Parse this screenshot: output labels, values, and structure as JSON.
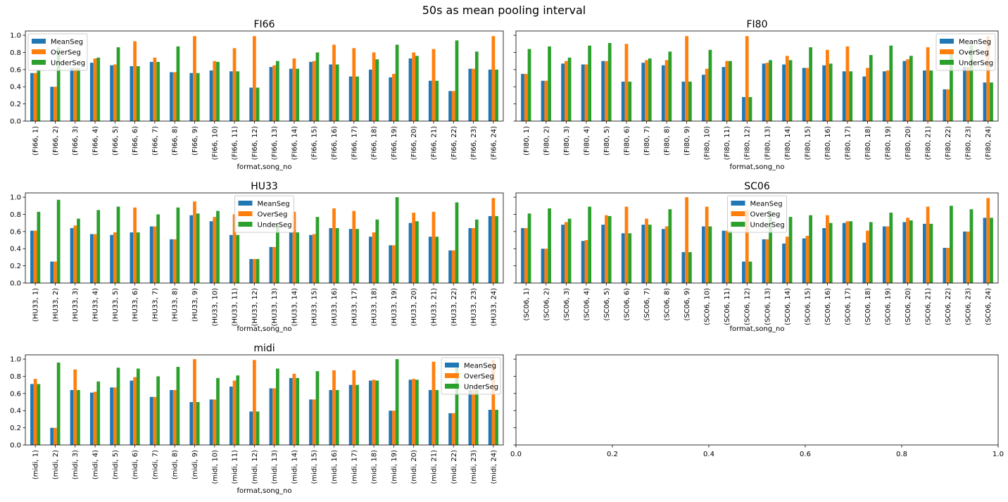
{
  "figure": {
    "title": "50s as mean pooling interval"
  },
  "colors": {
    "MeanSeg": "#1f77b4",
    "OverSeg": "#ff7f0e",
    "UnderSeg": "#2ca02c"
  },
  "chart_data": [
    {
      "type": "bar",
      "title": "FI66",
      "xlabel": "format,song_no",
      "ylim": [
        0,
        1.05
      ],
      "yticks": [
        "0.0",
        "0.2",
        "0.4",
        "0.6",
        "0.8",
        "1.0"
      ],
      "legend": "upper-left",
      "categories": [
        "(FI66, 1)",
        "(FI66, 2)",
        "(FI66, 3)",
        "(FI66, 4)",
        "(FI66, 5)",
        "(FI66, 6)",
        "(FI66, 7)",
        "(FI66, 8)",
        "(FI66, 9)",
        "(FI66, 10)",
        "(FI66, 11)",
        "(FI66, 12)",
        "(FI66, 13)",
        "(FI66, 14)",
        "(FI66, 15)",
        "(FI66, 16)",
        "(FI66, 17)",
        "(FI66, 18)",
        "(FI66, 19)",
        "(FI66, 20)",
        "(FI66, 21)",
        "(FI66, 22)",
        "(FI66, 23)",
        "(FI66, 24)"
      ],
      "series": [
        {
          "name": "MeanSeg",
          "values": [
            0.56,
            0.4,
            0.62,
            0.68,
            0.65,
            0.64,
            0.69,
            0.57,
            0.56,
            0.59,
            0.58,
            0.39,
            0.63,
            0.61,
            0.69,
            0.66,
            0.52,
            0.6,
            0.51,
            0.73,
            0.47,
            0.35,
            0.61,
            0.6
          ]
        },
        {
          "name": "OverSeg",
          "values": [
            0.56,
            0.4,
            0.62,
            0.73,
            0.66,
            0.93,
            0.74,
            0.57,
            0.99,
            0.7,
            0.85,
            0.99,
            0.65,
            0.73,
            0.7,
            0.89,
            0.85,
            0.8,
            0.55,
            0.8,
            0.84,
            0.35,
            0.61,
            0.99
          ]
        },
        {
          "name": "UnderSeg",
          "values": [
            0.6,
            0.86,
            0.62,
            0.74,
            0.86,
            0.64,
            0.69,
            0.87,
            0.56,
            0.69,
            0.58,
            0.39,
            0.7,
            0.61,
            0.8,
            0.66,
            0.52,
            0.72,
            0.89,
            0.76,
            0.47,
            0.94,
            0.81,
            0.6
          ]
        }
      ]
    },
    {
      "type": "bar",
      "title": "FI80",
      "xlabel": "format,song_no",
      "ylim": [
        0,
        1.05
      ],
      "yticks": [
        "0.0",
        "0.2",
        "0.4",
        "0.6",
        "0.8",
        "1.0"
      ],
      "legend": "upper-right",
      "categories": [
        "(FI80, 1)",
        "(FI80, 2)",
        "(FI80, 3)",
        "(FI80, 4)",
        "(FI80, 5)",
        "(FI80, 6)",
        "(FI80, 7)",
        "(FI80, 8)",
        "(FI80, 9)",
        "(FI80, 10)",
        "(FI80, 11)",
        "(FI80, 12)",
        "(FI80, 13)",
        "(FI80, 14)",
        "(FI80, 15)",
        "(FI80, 16)",
        "(FI80, 17)",
        "(FI80, 18)",
        "(FI80, 19)",
        "(FI80, 20)",
        "(FI80, 21)",
        "(FI80, 22)",
        "(FI80, 23)",
        "(FI80, 24)"
      ],
      "series": [
        {
          "name": "MeanSeg",
          "values": [
            0.55,
            0.47,
            0.67,
            0.66,
            0.7,
            0.46,
            0.68,
            0.65,
            0.46,
            0.54,
            0.63,
            0.28,
            0.67,
            0.66,
            0.62,
            0.65,
            0.58,
            0.52,
            0.58,
            0.7,
            0.59,
            0.37,
            0.63,
            0.45
          ]
        },
        {
          "name": "OverSeg",
          "values": [
            0.55,
            0.47,
            0.7,
            0.66,
            0.7,
            0.9,
            0.71,
            0.71,
            0.99,
            0.61,
            0.7,
            0.99,
            0.68,
            0.76,
            0.62,
            0.83,
            0.87,
            0.62,
            0.59,
            0.72,
            0.86,
            0.37,
            0.63,
            0.99
          ]
        },
        {
          "name": "UnderSeg",
          "values": [
            0.84,
            0.87,
            0.74,
            0.88,
            0.91,
            0.46,
            0.73,
            0.81,
            0.46,
            0.83,
            0.7,
            0.28,
            0.71,
            0.71,
            0.86,
            0.67,
            0.58,
            0.77,
            0.88,
            0.76,
            0.59,
            0.8,
            0.88,
            0.45
          ]
        }
      ]
    },
    {
      "type": "bar",
      "title": "HU33",
      "xlabel": "format,song_no",
      "ylim": [
        0,
        1.05
      ],
      "yticks": [
        "0.0",
        "0.2",
        "0.4",
        "0.6",
        "0.8",
        "1.0"
      ],
      "legend": "upper-center",
      "categories": [
        "(HU33, 1)",
        "(HU33, 2)",
        "(HU33, 3)",
        "(HU33, 4)",
        "(HU33, 5)",
        "(HU33, 6)",
        "(HU33, 7)",
        "(HU33, 8)",
        "(HU33, 9)",
        "(HU33, 10)",
        "(HU33, 11)",
        "(HU33, 12)",
        "(HU33, 13)",
        "(HU33, 14)",
        "(HU33, 15)",
        "(HU33, 16)",
        "(HU33, 17)",
        "(HU33, 18)",
        "(HU33, 19)",
        "(HU33, 20)",
        "(HU33, 21)",
        "(HU33, 22)",
        "(HU33, 23)",
        "(HU33, 24)"
      ],
      "series": [
        {
          "name": "MeanSeg",
          "values": [
            0.61,
            0.25,
            0.64,
            0.57,
            0.56,
            0.59,
            0.66,
            0.51,
            0.79,
            0.72,
            0.56,
            0.28,
            0.42,
            0.59,
            0.56,
            0.64,
            0.63,
            0.54,
            0.44,
            0.7,
            0.54,
            0.38,
            0.64,
            0.78
          ]
        },
        {
          "name": "OverSeg",
          "values": [
            0.61,
            0.25,
            0.67,
            0.57,
            0.59,
            0.88,
            0.66,
            0.51,
            0.95,
            0.77,
            0.8,
            0.28,
            0.42,
            0.83,
            0.57,
            0.87,
            0.84,
            0.59,
            0.44,
            0.82,
            0.83,
            0.38,
            0.64,
            0.99
          ]
        },
        {
          "name": "UnderSeg",
          "values": [
            0.83,
            0.97,
            0.75,
            0.85,
            0.89,
            0.59,
            0.8,
            0.88,
            0.81,
            0.84,
            0.56,
            0.28,
            0.68,
            0.59,
            0.77,
            0.64,
            0.63,
            0.74,
            1.0,
            0.72,
            0.54,
            0.94,
            0.74,
            0.78
          ]
        }
      ]
    },
    {
      "type": "bar",
      "title": "SC06",
      "xlabel": "format,song_no",
      "ylim": [
        0,
        1.05
      ],
      "yticks": [
        "0.0",
        "0.2",
        "0.4",
        "0.6",
        "0.8",
        "1.0"
      ],
      "legend": "upper-center",
      "categories": [
        "(SC06, 1)",
        "(SC06, 2)",
        "(SC06, 3)",
        "(SC06, 4)",
        "(SC06, 5)",
        "(SC06, 6)",
        "(SC06, 7)",
        "(SC06, 8)",
        "(SC06, 9)",
        "(SC06, 10)",
        "(SC06, 11)",
        "(SC06, 12)",
        "(SC06, 13)",
        "(SC06, 14)",
        "(SC06, 15)",
        "(SC06, 16)",
        "(SC06, 17)",
        "(SC06, 18)",
        "(SC06, 19)",
        "(SC06, 20)",
        "(SC06, 21)",
        "(SC06, 22)",
        "(SC06, 23)",
        "(SC06, 24)"
      ],
      "series": [
        {
          "name": "MeanSeg",
          "values": [
            0.64,
            0.4,
            0.68,
            0.49,
            0.68,
            0.58,
            0.68,
            0.63,
            0.36,
            0.66,
            0.61,
            0.25,
            0.51,
            0.46,
            0.52,
            0.64,
            0.7,
            0.47,
            0.66,
            0.71,
            0.69,
            0.41,
            0.6,
            0.76
          ]
        },
        {
          "name": "OverSeg",
          "values": [
            0.64,
            0.4,
            0.71,
            0.5,
            0.79,
            0.89,
            0.75,
            0.66,
            1.0,
            0.89,
            0.61,
            0.85,
            0.51,
            0.54,
            0.55,
            0.79,
            0.72,
            0.61,
            0.66,
            0.76,
            0.89,
            0.41,
            0.6,
            0.99
          ]
        },
        {
          "name": "UnderSeg",
          "values": [
            0.81,
            0.87,
            0.75,
            0.89,
            0.78,
            0.58,
            0.68,
            0.86,
            0.36,
            0.66,
            0.61,
            0.25,
            0.84,
            0.77,
            0.79,
            0.7,
            0.72,
            0.71,
            0.82,
            0.73,
            0.69,
            0.9,
            0.86,
            0.76
          ]
        }
      ]
    },
    {
      "type": "bar",
      "title": "midi",
      "xlabel": "format,song_no",
      "ylim": [
        0,
        1.05
      ],
      "yticks": [
        "0.0",
        "0.2",
        "0.4",
        "0.6",
        "0.8",
        "1.0"
      ],
      "legend": "upper-right",
      "categories": [
        "(midi, 1)",
        "(midi, 2)",
        "(midi, 3)",
        "(midi, 4)",
        "(midi, 5)",
        "(midi, 6)",
        "(midi, 7)",
        "(midi, 8)",
        "(midi, 9)",
        "(midi, 10)",
        "(midi, 11)",
        "(midi, 12)",
        "(midi, 13)",
        "(midi, 14)",
        "(midi, 15)",
        "(midi, 16)",
        "(midi, 17)",
        "(midi, 18)",
        "(midi, 19)",
        "(midi, 20)",
        "(midi, 21)",
        "(midi, 22)",
        "(midi, 23)",
        "(midi, 24)"
      ],
      "series": [
        {
          "name": "MeanSeg",
          "values": [
            0.71,
            0.2,
            0.64,
            0.61,
            0.67,
            0.75,
            0.56,
            0.64,
            0.5,
            0.53,
            0.68,
            0.39,
            0.66,
            0.78,
            0.53,
            0.64,
            0.7,
            0.75,
            0.4,
            0.76,
            0.64,
            0.37,
            0.64,
            0.41
          ]
        },
        {
          "name": "OverSeg",
          "values": [
            0.77,
            0.2,
            0.88,
            0.62,
            0.67,
            0.79,
            0.56,
            0.64,
            1.0,
            0.53,
            0.75,
            0.99,
            0.66,
            0.83,
            0.53,
            0.87,
            0.87,
            0.76,
            0.4,
            0.77,
            0.97,
            0.37,
            0.64,
            0.99
          ]
        },
        {
          "name": "UnderSeg",
          "values": [
            0.71,
            0.96,
            0.64,
            0.74,
            0.9,
            0.89,
            0.8,
            0.91,
            0.5,
            0.78,
            0.81,
            0.39,
            0.89,
            0.78,
            0.86,
            0.64,
            0.7,
            0.75,
            1.0,
            0.76,
            0.64,
            0.9,
            0.64,
            0.41
          ]
        }
      ]
    },
    {
      "type": "empty",
      "xlim": [
        0,
        1
      ],
      "ylim": [
        0,
        1.05
      ],
      "xticks": [
        "0.0",
        "0.2",
        "0.4",
        "0.6",
        "0.8",
        "1.0"
      ]
    }
  ]
}
